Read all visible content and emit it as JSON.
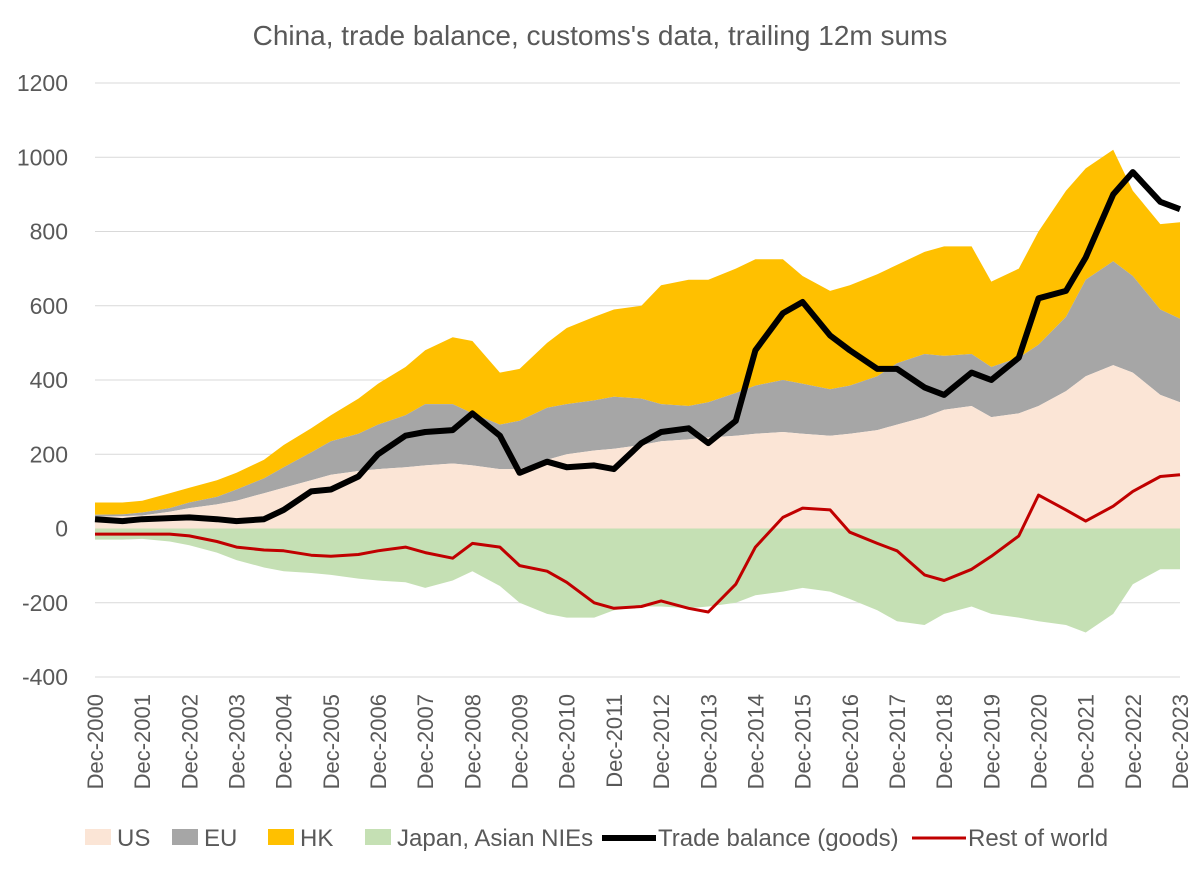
{
  "chart_data": {
    "type": "area",
    "title": "China, trade balance, customs's data, trailing 12m sums",
    "xlabel": "",
    "ylabel": "",
    "ylim": [
      -400,
      1200
    ],
    "yticks": [
      "-400",
      "-200",
      "0",
      "200",
      "400",
      "600",
      "800",
      "1000",
      "1200"
    ],
    "x_tick_labels": [
      "Dec-2000",
      "Dec-2001",
      "Dec-2002",
      "Dec-2003",
      "Dec-2004",
      "Dec-2005",
      "Dec-2006",
      "Dec-2007",
      "Dec-2008",
      "Dec-2009",
      "Dec-2010",
      "Dec-2011",
      "Dec-2012",
      "Dec-2013",
      "Dec-2014",
      "Dec-2015",
      "Dec-2016",
      "Dec-2017",
      "Dec-2018",
      "Dec-2019",
      "Dec-2020",
      "Dec-2021",
      "Dec-2022",
      "Dec-2023"
    ],
    "x": [
      2000.917,
      2001.5,
      2001.917,
      2002.5,
      2002.917,
      2003.5,
      2003.917,
      2004.5,
      2004.917,
      2005.5,
      2005.917,
      2006.5,
      2006.917,
      2007.5,
      2007.917,
      2008.5,
      2008.917,
      2009.5,
      2009.917,
      2010.5,
      2010.917,
      2011.5,
      2011.917,
      2012.5,
      2012.917,
      2013.5,
      2013.917,
      2014.5,
      2014.917,
      2015.5,
      2015.917,
      2016.5,
      2016.917,
      2017.5,
      2017.917,
      2018.5,
      2018.917,
      2019.5,
      2019.917,
      2020.5,
      2020.917,
      2021.5,
      2021.917,
      2022.5,
      2022.917,
      2023.5,
      2023.917
    ],
    "grid": "horizontal",
    "legend_position": "bottom",
    "colors": {
      "US": "#fbe5d6",
      "EU": "#a6a6a6",
      "HK": "#ffc000",
      "Japan, Asian NIEs": "#c5e0b4",
      "Trade balance (goods)": "#000000",
      "Rest of world": "#c00000"
    },
    "series": [
      {
        "name": "US",
        "kind": "stacked-area",
        "values": [
          32,
          33,
          35,
          45,
          55,
          65,
          75,
          95,
          110,
          130,
          145,
          155,
          160,
          165,
          170,
          175,
          170,
          160,
          160,
          185,
          200,
          210,
          215,
          225,
          235,
          240,
          245,
          250,
          255,
          260,
          255,
          250,
          255,
          265,
          280,
          300,
          320,
          330,
          300,
          310,
          330,
          370,
          410,
          440,
          420,
          360,
          340
        ]
      },
      {
        "name": "EU",
        "kind": "stacked-area",
        "values": [
          5,
          5,
          8,
          10,
          15,
          20,
          30,
          40,
          55,
          75,
          90,
          100,
          120,
          140,
          165,
          160,
          140,
          120,
          130,
          140,
          135,
          135,
          140,
          125,
          100,
          90,
          95,
          115,
          130,
          140,
          135,
          125,
          130,
          145,
          165,
          170,
          145,
          140,
          135,
          150,
          165,
          200,
          260,
          280,
          260,
          230,
          225
        ]
      },
      {
        "name": "HK",
        "kind": "stacked-area",
        "values": [
          33,
          32,
          32,
          40,
          40,
          45,
          45,
          50,
          60,
          65,
          70,
          95,
          110,
          130,
          145,
          180,
          195,
          140,
          140,
          175,
          205,
          225,
          235,
          250,
          320,
          340,
          330,
          335,
          340,
          325,
          290,
          265,
          270,
          275,
          265,
          275,
          295,
          290,
          230,
          240,
          305,
          340,
          300,
          300,
          230,
          230,
          260
        ]
      },
      {
        "name": "Japan, Asian NIEs",
        "kind": "negative-area",
        "values": [
          -30,
          -30,
          -28,
          -35,
          -45,
          -65,
          -85,
          -105,
          -115,
          -120,
          -125,
          -135,
          -140,
          -145,
          -160,
          -140,
          -115,
          -155,
          -200,
          -230,
          -240,
          -240,
          -220,
          -210,
          -210,
          -215,
          -210,
          -200,
          -180,
          -170,
          -160,
          -170,
          -190,
          -220,
          -250,
          -260,
          -230,
          -210,
          -230,
          -240,
          -250,
          -260,
          -280,
          -230,
          -150,
          -110,
          -110
        ]
      },
      {
        "name": "Trade balance (goods)",
        "kind": "line",
        "values": [
          25,
          20,
          25,
          28,
          30,
          25,
          20,
          25,
          50,
          100,
          105,
          140,
          200,
          250,
          260,
          265,
          310,
          250,
          150,
          180,
          165,
          170,
          160,
          230,
          260,
          270,
          230,
          290,
          480,
          580,
          610,
          520,
          480,
          430,
          430,
          380,
          360,
          420,
          400,
          460,
          620,
          640,
          730,
          900,
          960,
          880,
          860
        ]
      },
      {
        "name": "Rest of world",
        "kind": "line",
        "values": [
          -15,
          -15,
          -15,
          -15,
          -20,
          -35,
          -50,
          -58,
          -60,
          -72,
          -75,
          -70,
          -60,
          -50,
          -65,
          -80,
          -40,
          -50,
          -100,
          -115,
          -145,
          -200,
          -215,
          -210,
          -195,
          -215,
          -225,
          -150,
          -50,
          30,
          55,
          50,
          -10,
          -40,
          -60,
          -125,
          -140,
          -110,
          -75,
          -20,
          90,
          50,
          20,
          60,
          100,
          140,
          145
        ]
      }
    ]
  }
}
